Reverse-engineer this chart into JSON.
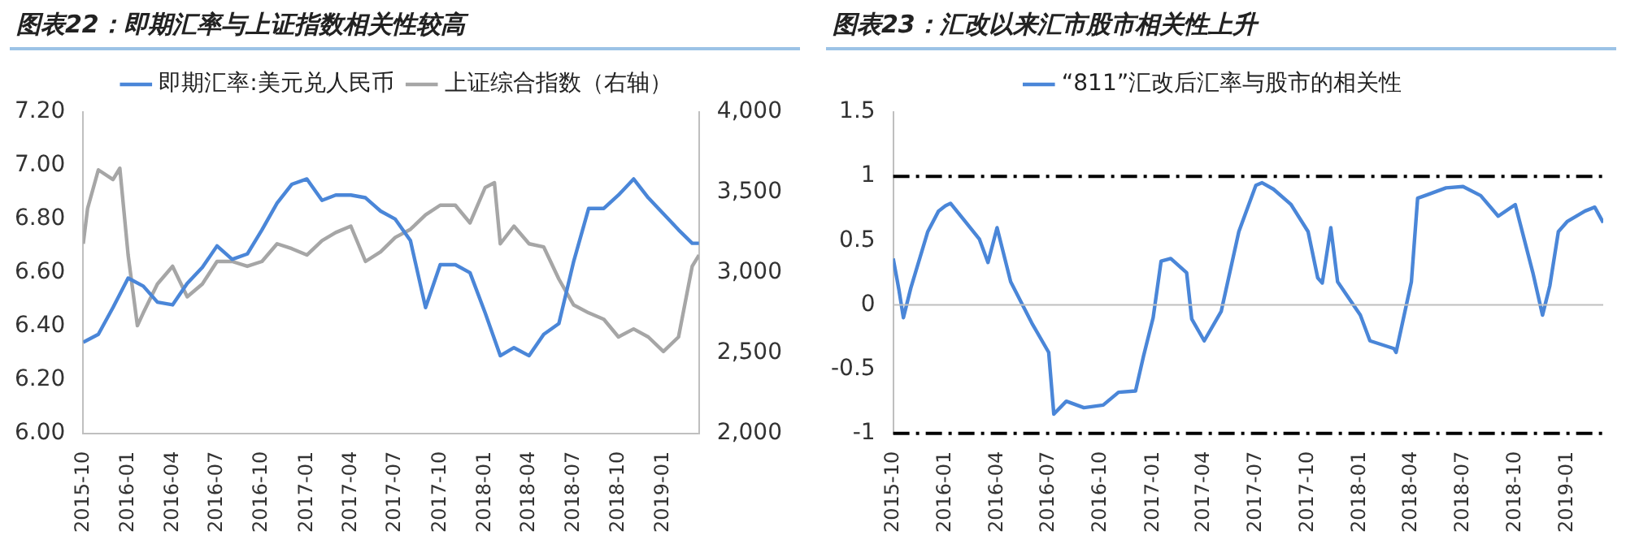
{
  "chart_data": [
    {
      "type": "line",
      "title": "图表22：即期汇率与上证指数相关性较高",
      "legend": "top",
      "marker": "none",
      "grid": false,
      "xlim": [
        "2015-10",
        "2019-03-15"
      ],
      "xticks": [
        "2015-10",
        "2016-01",
        "2016-04",
        "2016-07",
        "2016-10",
        "2017-01",
        "2017-04",
        "2017-07",
        "2017-10",
        "2018-01",
        "2018-04",
        "2018-07",
        "2018-10",
        "2019-01"
      ],
      "ylim": [
        6.0,
        7.2
      ],
      "yticks": [
        {
          "value": 6.0,
          "label": "6.00"
        },
        {
          "value": 6.2,
          "label": "6.20"
        },
        {
          "value": 6.4,
          "label": "6.40"
        },
        {
          "value": 6.6,
          "label": "6.60"
        },
        {
          "value": 6.8,
          "label": "6.80"
        },
        {
          "value": 7.0,
          "label": "7.00"
        },
        {
          "value": 7.2,
          "label": "7.20"
        }
      ],
      "y2lim": [
        2000,
        4000
      ],
      "y2ticks": [
        {
          "value": 2000,
          "label": "2,000"
        },
        {
          "value": 2500,
          "label": "2,500"
        },
        {
          "value": 3000,
          "label": "3,000"
        },
        {
          "value": 3500,
          "label": "3,500"
        },
        {
          "value": 4000,
          "label": "4,000"
        }
      ],
      "series": [
        {
          "name": "即期汇率:美元兑人民币",
          "color": "#4a86d8",
          "x": [
            "2015-10",
            "2015-11",
            "2015-12",
            "2016-01",
            "2016-02",
            "2016-03",
            "2016-04",
            "2016-05",
            "2016-06",
            "2016-07",
            "2016-08",
            "2016-09",
            "2016-10",
            "2016-11",
            "2016-12",
            "2017-01",
            "2017-02",
            "2017-03",
            "2017-04",
            "2017-05",
            "2017-06",
            "2017-07",
            "2017-08",
            "2017-09",
            "2017-10",
            "2017-11",
            "2017-12",
            "2018-01",
            "2018-02",
            "2018-03",
            "2018-04",
            "2018-05",
            "2018-06",
            "2018-07",
            "2018-08",
            "2018-09",
            "2018-10",
            "2018-11",
            "2018-12",
            "2019-01",
            "2019-02",
            "2019-03",
            "2019-03-15"
          ],
          "values": [
            6.34,
            6.37,
            6.47,
            6.58,
            6.55,
            6.49,
            6.48,
            6.56,
            6.62,
            6.7,
            6.65,
            6.67,
            6.76,
            6.86,
            6.93,
            6.95,
            6.87,
            6.89,
            6.89,
            6.88,
            6.83,
            6.8,
            6.72,
            6.47,
            6.63,
            6.63,
            6.6,
            6.45,
            6.29,
            6.32,
            6.29,
            6.37,
            6.41,
            6.64,
            6.84,
            6.84,
            6.89,
            6.95,
            6.88,
            6.82,
            6.76,
            6.71,
            6.71
          ]
        },
        {
          "name": "上证综合指数（右轴）",
          "color": "#a6a6a6",
          "axis": "y2",
          "x": [
            "2015-10",
            "2015-10-10",
            "2015-11",
            "2015-12",
            "2015-12-15",
            "2016-01",
            "2016-01-20",
            "2016-02",
            "2016-03",
            "2016-04",
            "2016-05",
            "2016-06",
            "2016-07",
            "2016-08",
            "2016-09",
            "2016-10",
            "2016-11",
            "2016-12",
            "2017-01",
            "2017-02",
            "2017-03",
            "2017-04",
            "2017-05",
            "2017-06",
            "2017-07",
            "2017-08",
            "2017-09",
            "2017-10",
            "2017-11",
            "2017-12",
            "2018-01",
            "2018-01-20",
            "2018-02",
            "2018-03",
            "2018-04",
            "2018-05",
            "2018-06",
            "2018-07",
            "2018-08",
            "2018-09",
            "2018-10",
            "2018-11",
            "2018-12",
            "2019-01",
            "2019-02",
            "2019-03",
            "2019-03-15"
          ],
          "values": [
            3180,
            3400,
            3640,
            3580,
            3650,
            3110,
            2670,
            2750,
            2930,
            3040,
            2850,
            2930,
            3070,
            3070,
            3040,
            3070,
            3180,
            3150,
            3110,
            3200,
            3250,
            3290,
            3070,
            3130,
            3220,
            3270,
            3360,
            3420,
            3420,
            3310,
            3530,
            3560,
            3180,
            3290,
            3180,
            3160,
            2960,
            2800,
            2750,
            2710,
            2600,
            2650,
            2600,
            2510,
            2600,
            3040,
            3110
          ]
        }
      ]
    },
    {
      "type": "line",
      "title": "图表23：汇改以来汇市股市相关性上升",
      "legend": "top",
      "marker": "none",
      "grid": false,
      "xlim": [
        "2015-10",
        "2019-03-05"
      ],
      "xticks": [
        "2015-10",
        "2016-01",
        "2016-04",
        "2016-07",
        "2016-10",
        "2017-01",
        "2017-04",
        "2017-07",
        "2017-10",
        "2018-01",
        "2018-04",
        "2018-07",
        "2018-10",
        "2019-01"
      ],
      "ylim": [
        -1,
        1.5
      ],
      "yticks": [
        -1,
        -0.5,
        0,
        0.5,
        1,
        1.5
      ],
      "ref_lines": [
        {
          "axis": "y",
          "value": 0,
          "color": "#bfbfbf",
          "line_style": "solid"
        },
        {
          "axis": "y",
          "value": 1,
          "color": "#000000",
          "line_style": "dashed"
        },
        {
          "axis": "y",
          "value": -1,
          "color": "#000000",
          "line_style": "dashed"
        }
      ],
      "series": [
        {
          "name": "“811”汇改后汇率与股市的相关性",
          "color": "#4a86d8",
          "x": [
            "2015-10-01",
            "2015-10-11",
            "2015-10-19",
            "2015-11-01",
            "2015-12-01",
            "2015-12-20",
            "2016-01-01",
            "2016-01-10",
            "2016-02-01",
            "2016-03-01",
            "2016-03-16",
            "2016-04-01",
            "2016-04-25",
            "2016-06-01",
            "2016-07-01",
            "2016-07-10",
            "2016-08-01",
            "2016-09-01",
            "2016-10-05",
            "2016-11-01",
            "2016-12-01",
            "2016-12-15",
            "2017-01-01",
            "2017-01-15",
            "2017-02-01",
            "2017-03-01",
            "2017-03-10",
            "2017-04-01",
            "2017-05-01",
            "2017-06-01",
            "2017-07-01",
            "2017-07-12",
            "2017-08-01",
            "2017-09-01",
            "2017-10-01",
            "2017-10-18",
            "2017-10-26",
            "2017-11-10",
            "2017-11-22",
            "2018-01-01",
            "2018-01-18",
            "2018-03-01",
            "2018-03-05",
            "2018-04-01",
            "2018-04-12",
            "2018-05-01",
            "2018-06-01",
            "2018-07-01",
            "2018-08-01",
            "2018-09-01",
            "2018-10-01",
            "2018-11-01",
            "2018-11-18",
            "2018-12-01",
            "2018-12-16",
            "2019-01-01",
            "2019-02-01",
            "2019-02-18",
            "2019-03-05"
          ],
          "values": [
            0.36,
            0.12,
            -0.1,
            0.13,
            0.57,
            0.73,
            0.77,
            0.79,
            0.67,
            0.51,
            0.33,
            0.6,
            0.18,
            -0.14,
            -0.37,
            -0.85,
            -0.75,
            -0.8,
            -0.78,
            -0.68,
            -0.67,
            -0.4,
            -0.1,
            0.34,
            0.36,
            0.25,
            -0.11,
            -0.28,
            -0.05,
            0.57,
            0.93,
            0.95,
            0.9,
            0.78,
            0.57,
            0.21,
            0.17,
            0.6,
            0.18,
            -0.08,
            -0.28,
            -0.34,
            -0.37,
            0.18,
            0.83,
            0.86,
            0.91,
            0.92,
            0.85,
            0.69,
            0.78,
            0.25,
            -0.08,
            0.15,
            0.57,
            0.65,
            0.73,
            0.76,
            0.64
          ]
        }
      ]
    }
  ]
}
